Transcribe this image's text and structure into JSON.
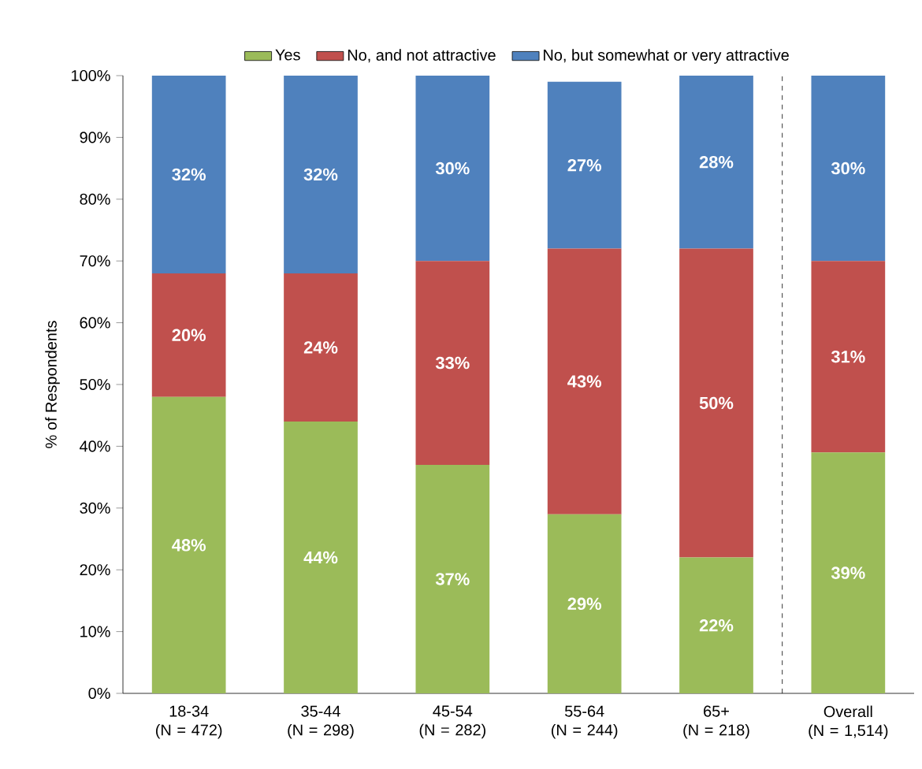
{
  "chart_data": {
    "type": "bar",
    "stacked": true,
    "ylabel": "% of Respondents",
    "categories": [
      "18-34\n(N = 472)",
      "35-44\n(N = 298)",
      "45-54\n(N = 282)",
      "55-64\n(N = 244)",
      "65+\n(N = 218)",
      "Overall\n(N = 1,514)"
    ],
    "series": [
      {
        "name": "Yes",
        "color": "#9bbb59",
        "values": [
          48,
          44,
          37,
          29,
          22,
          39
        ],
        "value_labels": [
          "48%",
          "44%",
          "37%",
          "29%",
          "22%",
          "39%"
        ]
      },
      {
        "name": "No, and not attractive",
        "color": "#c0504d",
        "values": [
          20,
          24,
          33,
          43,
          50,
          31
        ],
        "value_labels": [
          "20%",
          "24%",
          "33%",
          "43%",
          "50%",
          "31%"
        ]
      },
      {
        "name": "No, but somewhat or very attractive",
        "color": "#4f81bd",
        "values": [
          32,
          32,
          30,
          27,
          28,
          30
        ],
        "value_labels": [
          "32%",
          "32%",
          "30%",
          "27%",
          "28%",
          "30%"
        ]
      }
    ],
    "ylim": [
      0,
      100
    ],
    "yticks": [
      {
        "value": 0,
        "label": "0%"
      },
      {
        "value": 10,
        "label": "10%"
      },
      {
        "value": 20,
        "label": "20%"
      },
      {
        "value": 30,
        "label": "30%"
      },
      {
        "value": 40,
        "label": "40%"
      },
      {
        "value": 50,
        "label": "50%"
      },
      {
        "value": 60,
        "label": "60%"
      },
      {
        "value": 70,
        "label": "70%"
      },
      {
        "value": 80,
        "label": "80%"
      },
      {
        "value": 90,
        "label": "90%"
      },
      {
        "value": 100,
        "label": "100%"
      }
    ],
    "legend": "top"
  }
}
